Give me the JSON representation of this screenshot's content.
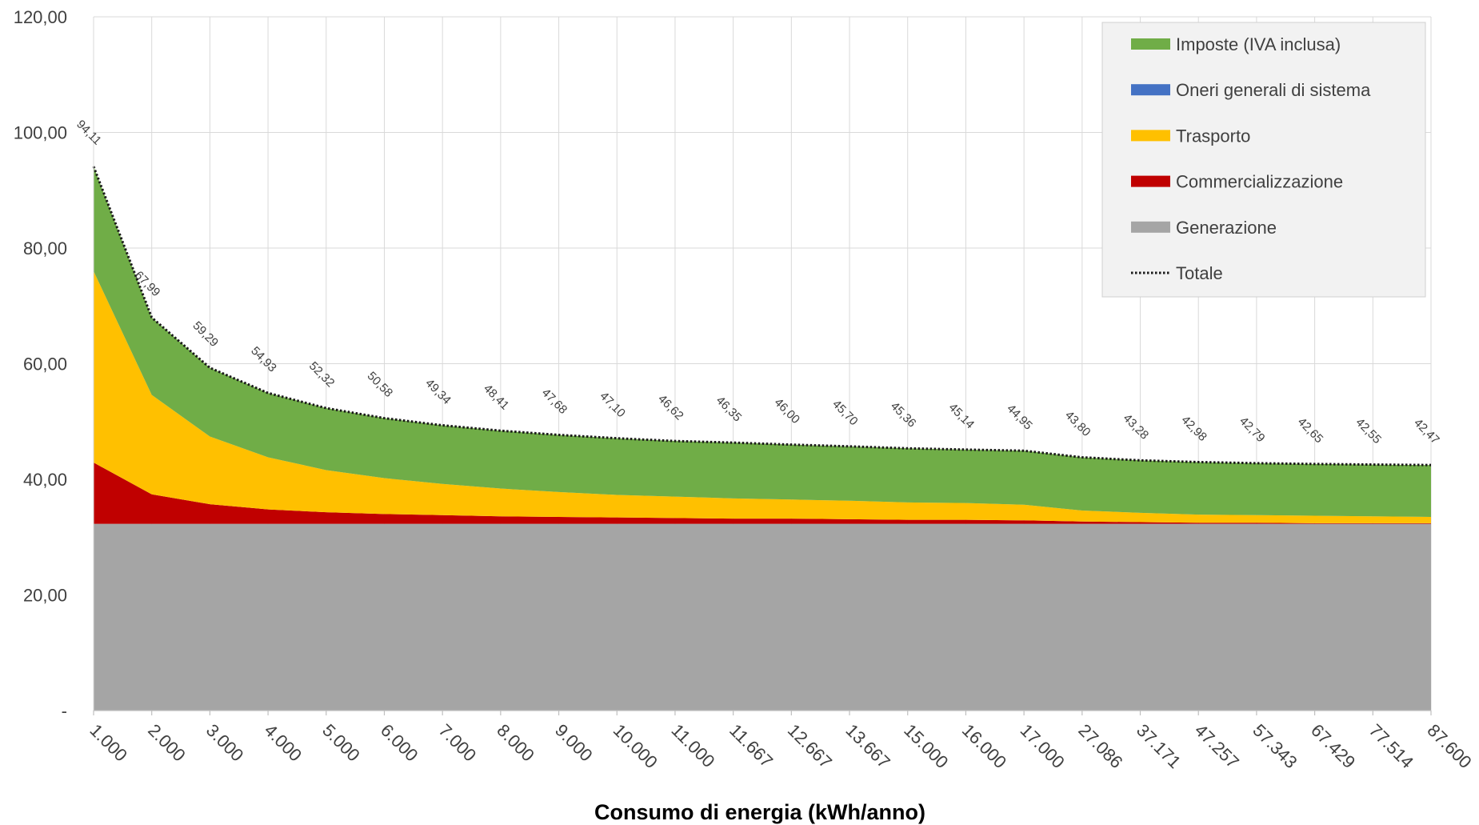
{
  "chart_data": {
    "type": "area",
    "xlabel": "Consumo di energia (kWh/anno)",
    "categories": [
      "1.000",
      "2.000",
      "3.000",
      "4.000",
      "5.000",
      "6.000",
      "7.000",
      "8.000",
      "9.000",
      "10.000",
      "11.000",
      "11.667",
      "12.667",
      "13.667",
      "15.000",
      "16.000",
      "17.000",
      "27.086",
      "37.171",
      "47.257",
      "57.343",
      "67.429",
      "77.514",
      "87.600"
    ],
    "ylim": [
      0,
      120
    ],
    "yticks": [
      {
        "value": 0,
        "label": "-"
      },
      {
        "value": 20,
        "label": "20,00"
      },
      {
        "value": 40,
        "label": "40,00"
      },
      {
        "value": 60,
        "label": "60,00"
      },
      {
        "value": 80,
        "label": "80,00"
      },
      {
        "value": 100,
        "label": "100,00"
      },
      {
        "value": 120,
        "label": "120,00"
      }
    ],
    "grid": true,
    "legend_position": "top-right",
    "series": [
      {
        "name": "Generazione",
        "color": "#A5A5A5",
        "values": [
          32.3,
          32.3,
          32.3,
          32.3,
          32.3,
          32.3,
          32.3,
          32.3,
          32.3,
          32.3,
          32.3,
          32.3,
          32.3,
          32.3,
          32.3,
          32.3,
          32.3,
          32.3,
          32.3,
          32.3,
          32.3,
          32.3,
          32.3,
          32.3
        ]
      },
      {
        "name": "Commercializzazione",
        "color": "#C00000",
        "values": [
          10.6,
          5.1,
          3.4,
          2.5,
          2.0,
          1.7,
          1.5,
          1.3,
          1.2,
          1.1,
          1.0,
          0.9,
          0.9,
          0.8,
          0.7,
          0.7,
          0.6,
          0.4,
          0.3,
          0.2,
          0.2,
          0.1,
          0.1,
          0.1
        ]
      },
      {
        "name": "Trasporto",
        "color": "#FFC000",
        "values": [
          33.1,
          17.2,
          11.7,
          9.0,
          7.3,
          6.2,
          5.4,
          4.8,
          4.3,
          3.9,
          3.7,
          3.5,
          3.3,
          3.2,
          3.0,
          2.9,
          2.7,
          1.9,
          1.6,
          1.4,
          1.3,
          1.3,
          1.2,
          1.1
        ]
      },
      {
        "name": "Oneri generali di sistema",
        "color": "#4472C4",
        "values": [
          0,
          0,
          0,
          0,
          0,
          0,
          0,
          0,
          0,
          0,
          0,
          0,
          0,
          0,
          0,
          0,
          0,
          0,
          0,
          0,
          0,
          0,
          0,
          0
        ]
      },
      {
        "name": "Imposte (IVA inclusa)",
        "color": "#70AD47",
        "values": [
          18.11,
          13.39,
          11.89,
          11.13,
          10.72,
          10.38,
          10.14,
          10.01,
          9.88,
          9.8,
          9.62,
          9.65,
          9.5,
          9.4,
          9.36,
          9.24,
          9.35,
          9.2,
          9.08,
          9.08,
          8.99,
          8.95,
          8.95,
          8.97
        ]
      }
    ],
    "total": {
      "name": "Totale",
      "color": "#1a1a1a",
      "values": [
        94.11,
        67.99,
        59.29,
        54.93,
        52.32,
        50.58,
        49.34,
        48.41,
        47.68,
        47.1,
        46.62,
        46.35,
        46.0,
        45.7,
        45.36,
        45.14,
        44.95,
        43.8,
        43.28,
        42.98,
        42.79,
        42.65,
        42.55,
        42.47
      ],
      "labels": [
        "94,11",
        "67,99",
        "59,29",
        "54,93",
        "52,32",
        "50,58",
        "49,34",
        "48,41",
        "47,68",
        "47,10",
        "46,62",
        "46,35",
        "46,00",
        "45,70",
        "45,36",
        "45,14",
        "44,95",
        "43,80",
        "43,28",
        "42,98",
        "42,79",
        "42,65",
        "42,55",
        "42,47"
      ]
    },
    "legend_order": [
      "Imposte (IVA inclusa)",
      "Oneri generali di sistema",
      "Trasporto",
      "Commercializzazione",
      "Generazione",
      "Totale"
    ]
  }
}
